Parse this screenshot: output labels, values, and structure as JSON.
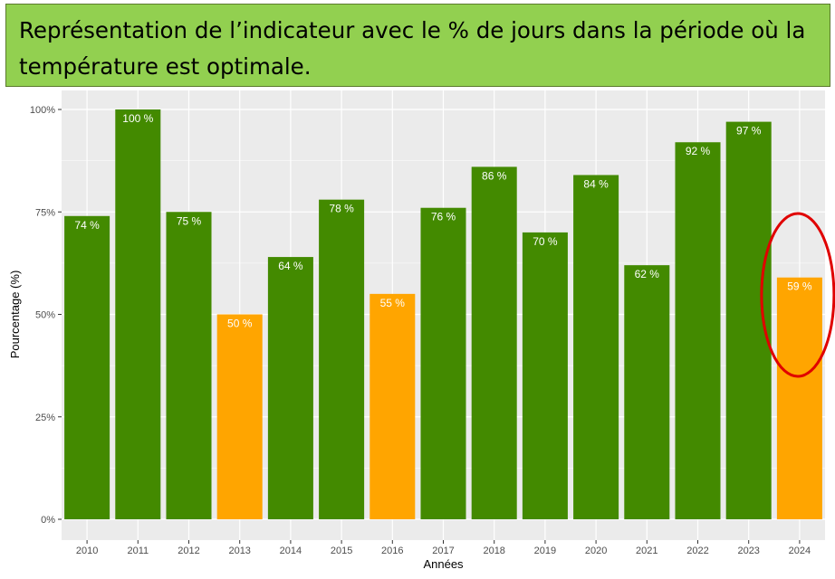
{
  "title": "Représentation de l’indicateur avec le % de jours dans la période où la température est optimale.",
  "colors": {
    "title_bg": "#92d050",
    "panel_bg": "#ebebeb",
    "gridline": "#ffffff",
    "green": "#438a00",
    "orange": "#ffa500",
    "highlight_circle": "#e00000"
  },
  "chart_data": {
    "type": "bar",
    "categories": [
      "2010",
      "2011",
      "2012",
      "2013",
      "2014",
      "2015",
      "2016",
      "2017",
      "2018",
      "2019",
      "2020",
      "2021",
      "2022",
      "2023",
      "2024"
    ],
    "values": [
      74,
      100,
      75,
      50,
      64,
      78,
      55,
      76,
      86,
      70,
      84,
      62,
      92,
      97,
      59
    ],
    "data_labels": [
      "74 %",
      "100 %",
      "75 %",
      "50 %",
      "64 %",
      "78 %",
      "55 %",
      "76 %",
      "86 %",
      "70 %",
      "84 %",
      "62 %",
      "92 %",
      "97 %",
      "59 %"
    ],
    "bar_colors": [
      "green",
      "green",
      "green",
      "orange",
      "green",
      "green",
      "orange",
      "green",
      "green",
      "green",
      "green",
      "green",
      "green",
      "green",
      "orange"
    ],
    "xlabel": "Années",
    "ylabel": "Pourcentage (%)",
    "ylim": [
      0,
      100
    ],
    "yticks": [
      0,
      25,
      50,
      75,
      100
    ],
    "ytick_labels": [
      "0%",
      "25%",
      "50%",
      "75%",
      "100%"
    ],
    "grid": true,
    "legend": "none",
    "highlighted_category": "2024"
  }
}
